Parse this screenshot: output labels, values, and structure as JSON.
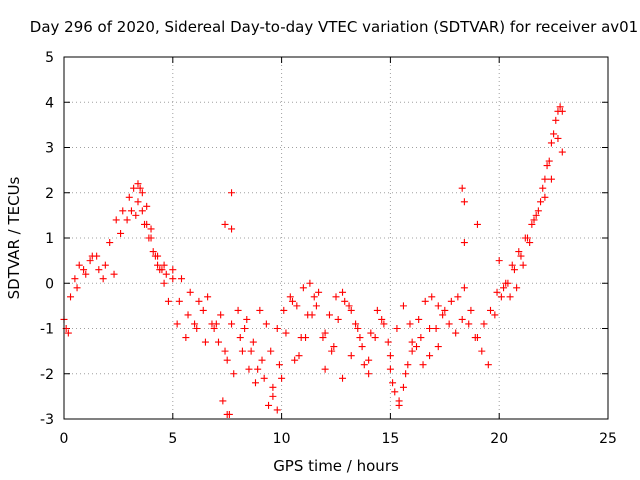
{
  "chart_data": {
    "type": "scatter",
    "title": "Day 296 of 2020, Sidereal Day-to-day VTEC variation (SDTVAR) for receiver av01",
    "xlabel": "GPS time / hours",
    "ylabel": "SDTVAR / TECUs",
    "xlim": [
      0,
      25
    ],
    "ylim": [
      -3,
      5
    ],
    "xticks": [
      "0",
      "5",
      "10",
      "15",
      "20",
      "25"
    ],
    "yticks": [
      "-3",
      "-2",
      "-1",
      "0",
      "1",
      "2",
      "3",
      "4",
      "5"
    ],
    "grid": true,
    "marker": "+",
    "series": [
      {
        "name": "SDTVAR",
        "color": "#ff0000",
        "x": [
          0.0,
          0.1,
          0.2,
          0.5,
          0.7,
          1.0,
          1.3,
          1.6,
          1.8,
          2.1,
          2.4,
          2.7,
          3.0,
          3.2,
          3.4,
          3.5,
          3.6,
          3.8,
          4.0,
          4.2,
          4.4,
          4.6,
          4.8,
          5.2,
          5.6,
          6.0,
          6.4,
          6.8,
          7.1,
          7.4,
          7.7,
          8.0,
          8.3,
          8.6,
          8.9,
          9.2,
          9.5,
          9.8,
          10.1,
          10.4,
          10.7,
          11.0,
          11.3,
          11.6,
          11.9,
          12.2,
          12.5,
          12.8,
          13.1,
          13.4,
          13.7,
          14.0,
          14.3,
          14.6,
          14.9,
          15.1,
          15.4,
          15.7,
          16.0,
          16.3,
          16.6,
          16.9,
          17.2,
          17.5,
          17.8,
          18.1,
          18.4,
          18.7,
          19.0,
          19.3,
          19.6,
          19.9,
          20.2,
          20.5,
          20.8,
          21.1,
          21.4,
          21.7,
          22.0,
          22.2,
          22.4,
          22.6,
          22.8,
          22.9,
          0.3,
          0.6,
          0.9,
          1.2,
          1.5,
          1.9,
          2.3,
          2.6,
          2.9,
          3.1,
          3.3,
          3.7,
          3.9,
          4.1,
          4.3,
          4.5,
          4.7,
          5.0,
          5.3,
          5.7,
          6.1,
          6.5,
          6.9,
          7.2,
          7.5,
          7.8,
          8.1,
          8.4,
          8.7,
          9.0,
          9.3,
          9.6,
          9.9,
          10.2,
          10.5,
          10.8,
          11.1,
          11.4,
          11.7,
          12.0,
          12.3,
          12.6,
          12.9,
          13.2,
          13.5,
          13.8,
          14.1,
          14.4,
          14.7,
          15.0,
          15.3,
          15.6,
          15.9,
          16.2,
          16.5,
          16.8,
          17.1,
          17.4,
          17.7,
          18.0,
          18.3,
          18.6,
          18.9,
          19.2,
          19.5,
          19.8,
          20.1,
          20.4,
          20.7,
          21.0,
          21.3,
          21.6,
          21.9,
          22.1,
          22.3,
          22.5,
          22.7,
          3.4,
          3.6,
          3.8,
          4.0,
          4.3,
          4.6,
          5.0,
          5.4,
          5.8,
          6.2,
          6.6,
          7.0,
          7.3,
          7.6,
          7.7,
          7.7,
          7.4,
          7.5,
          9.4,
          9.6,
          9.8,
          10.0,
          18.3,
          18.4,
          18.4,
          19.0,
          20.0,
          20.3,
          20.6,
          20.9,
          21.2,
          21.5,
          21.8,
          22.1,
          22.4,
          22.7,
          22.9,
          15.0,
          15.2,
          15.4,
          15.6,
          15.8,
          16.0,
          16.4,
          16.8,
          17.2,
          12.0,
          12.4,
          12.8,
          13.2,
          13.6,
          14.0,
          10.6,
          10.9,
          11.2,
          11.5,
          8.2,
          8.5,
          8.8,
          9.1
        ],
        "y": [
          -0.8,
          -1.0,
          -1.1,
          0.1,
          0.4,
          0.2,
          0.6,
          0.3,
          0.1,
          0.9,
          1.4,
          1.6,
          1.9,
          2.1,
          2.2,
          2.1,
          2.0,
          1.7,
          1.2,
          0.6,
          0.3,
          0.0,
          -0.4,
          -0.9,
          -1.2,
          -0.9,
          -0.6,
          -0.9,
          -1.3,
          -1.5,
          -0.9,
          -0.6,
          -1.0,
          -1.5,
          -1.9,
          -2.1,
          -1.5,
          -1.0,
          -0.6,
          -0.3,
          -0.5,
          -0.1,
          0.0,
          -0.5,
          -1.2,
          -0.7,
          -0.3,
          -0.2,
          -0.5,
          -0.9,
          -1.4,
          -1.7,
          -1.2,
          -0.8,
          -1.3,
          -2.2,
          -2.6,
          -2.0,
          -1.3,
          -0.8,
          -0.4,
          -0.3,
          -0.5,
          -0.6,
          -0.4,
          -0.3,
          -0.1,
          -0.6,
          -1.2,
          -0.9,
          -0.6,
          -0.2,
          -0.1,
          -0.3,
          -0.1,
          0.4,
          0.9,
          1.5,
          2.1,
          2.6,
          3.1,
          3.6,
          3.9,
          3.8,
          -0.3,
          -0.1,
          0.3,
          0.5,
          0.6,
          0.4,
          0.2,
          1.1,
          1.4,
          1.6,
          1.5,
          1.3,
          1.0,
          0.7,
          0.4,
          0.3,
          0.2,
          0.1,
          -0.4,
          -0.7,
          -1.0,
          -1.3,
          -1.0,
          -0.7,
          -1.7,
          -2.0,
          -1.2,
          -0.8,
          -1.3,
          -0.6,
          -0.9,
          -2.3,
          -1.8,
          -1.1,
          -0.4,
          -1.6,
          -1.2,
          -0.7,
          -0.2,
          -1.1,
          -1.5,
          -0.8,
          -0.4,
          -0.6,
          -1.0,
          -1.8,
          -1.1,
          -0.6,
          -0.9,
          -1.6,
          -1.0,
          -0.5,
          -0.9,
          -1.4,
          -1.8,
          -1.6,
          -1.0,
          -0.7,
          -0.9,
          -1.1,
          -0.8,
          -0.9,
          -1.2,
          -1.5,
          -1.8,
          -0.7,
          -0.3,
          0.0,
          0.3,
          0.6,
          1.0,
          1.4,
          1.8,
          2.3,
          2.7,
          3.3,
          3.8,
          1.8,
          1.6,
          1.3,
          1.0,
          0.6,
          0.4,
          0.3,
          0.1,
          -0.2,
          -0.4,
          -0.3,
          -0.9,
          -2.6,
          -2.9,
          2.0,
          1.2,
          1.3,
          -2.9,
          -2.7,
          -2.5,
          -2.8,
          -2.1,
          2.1,
          1.8,
          0.9,
          1.3,
          0.5,
          0.0,
          0.4,
          0.7,
          1.0,
          1.3,
          1.6,
          1.9,
          2.3,
          3.2,
          2.9,
          -1.9,
          -2.4,
          -2.7,
          -2.3,
          -1.8,
          -1.5,
          -1.2,
          -1.0,
          -1.4,
          -1.9,
          -1.4,
          -2.1,
          -1.6,
          -1.2,
          -2.0,
          -1.7,
          -1.2,
          -0.7,
          -0.3,
          -1.5,
          -1.9,
          -2.2,
          -1.7
        ]
      }
    ]
  }
}
